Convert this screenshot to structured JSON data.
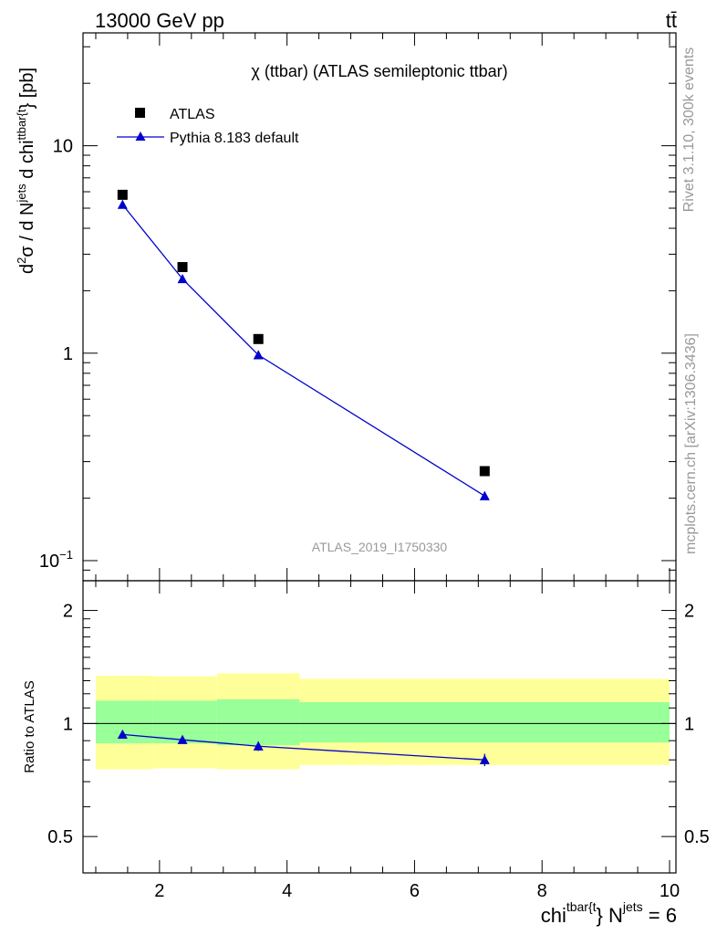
{
  "header": {
    "left": "13000 GeV pp",
    "right": "tt̄"
  },
  "side_text": {
    "rivet": "Rivet 3.1.10,  300k events",
    "mcplots": "mcplots.cern.ch [arXiv:1306.3436]"
  },
  "watermark": "ATLAS_2019_I1750330",
  "chart_data": [
    {
      "type": "scatter",
      "title": "χ (ttbar) (ATLAS semileptonic ttbar)",
      "ylabel": {
        "prefix": "d",
        "sup1": "2",
        "mid1": "σ /  d N",
        "sup2": "jets",
        "mid2": " d chi",
        "sup3": "ttbar{t",
        "end": "} [pb]"
      },
      "yscale": "log",
      "ylim": [
        0.08,
        35
      ],
      "yticks": [
        {
          "value": 0.1,
          "base": "10",
          "exp": "−1"
        },
        {
          "value": 1,
          "label": "1"
        },
        {
          "value": 10,
          "label": "10"
        }
      ],
      "xlim": [
        0.8,
        10.1
      ],
      "legend": [
        {
          "label": "ATLAS",
          "marker": "square",
          "color": "#000000"
        },
        {
          "label": "Pythia 8.183 default",
          "marker": "triangle",
          "color": "#0000cc"
        }
      ],
      "series": [
        {
          "name": "ATLAS",
          "x": [
            1.42,
            2.36,
            3.55,
            7.1
          ],
          "y": [
            5.8,
            2.6,
            1.17,
            0.27
          ]
        },
        {
          "name": "Pythia 8.183 default",
          "x": [
            1.42,
            2.36,
            3.55,
            7.1
          ],
          "y": [
            5.2,
            2.28,
            0.98,
            0.205
          ]
        }
      ]
    },
    {
      "type": "scatter",
      "ylabel": "Ratio to ATLAS",
      "yscale": "log",
      "ylim": [
        0.4,
        2.4
      ],
      "yticks": [
        {
          "value": 0.5,
          "label": "0.5"
        },
        {
          "value": 1,
          "label": "1"
        },
        {
          "value": 2,
          "label": "2"
        }
      ],
      "xlim": [
        0.8,
        10.1
      ],
      "xticks": [
        2,
        4,
        6,
        8,
        10
      ],
      "xlabel": {
        "main": "chi",
        "sup1": "tbar{t",
        "mid": "} N",
        "sup2": "jets",
        "end": " = 6"
      },
      "bins": [
        {
          "x_low": 1.0,
          "x_high": 1.9,
          "yellow_low": 0.755,
          "yellow_high": 1.34,
          "green_low": 0.885,
          "green_high": 1.15
        },
        {
          "x_low": 1.9,
          "x_high": 2.9,
          "yellow_low": 0.76,
          "yellow_high": 1.335,
          "green_low": 0.885,
          "green_high": 1.15
        },
        {
          "x_low": 2.9,
          "x_high": 4.2,
          "yellow_low": 0.755,
          "yellow_high": 1.36,
          "green_low": 0.875,
          "green_high": 1.16
        },
        {
          "x_low": 4.2,
          "x_high": 10.0,
          "yellow_low": 0.775,
          "yellow_high": 1.315,
          "green_low": 0.89,
          "green_high": 1.14
        }
      ],
      "series": [
        {
          "name": "Pythia 8.183 default",
          "x": [
            1.42,
            2.36,
            3.55,
            7.1
          ],
          "y": [
            0.935,
            0.905,
            0.87,
            0.8
          ],
          "yerr": [
            0.012,
            0.018,
            0.025,
            0.03
          ]
        }
      ]
    }
  ]
}
